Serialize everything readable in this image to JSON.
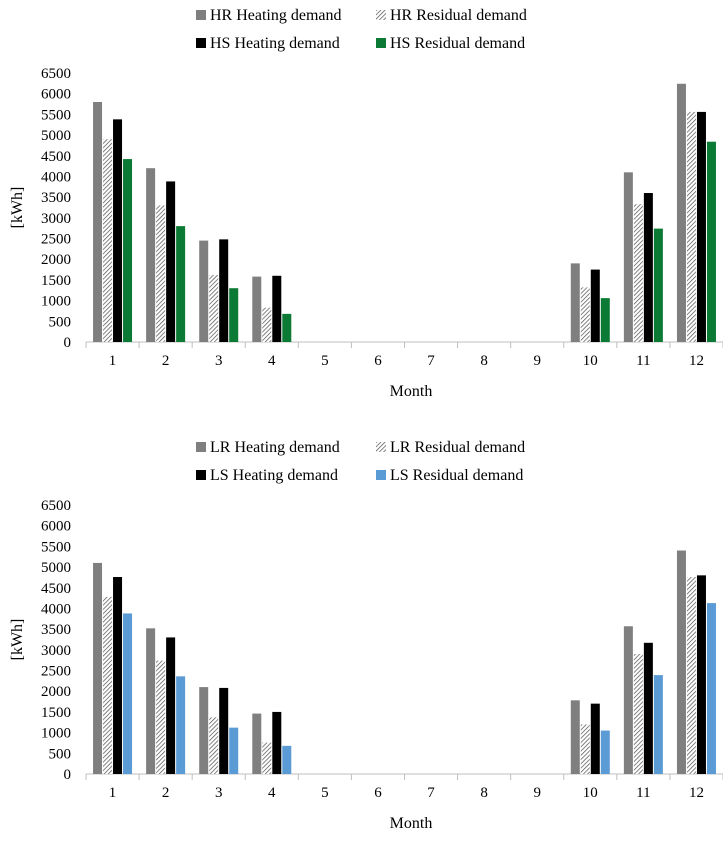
{
  "chart_data": [
    {
      "type": "bar",
      "title": "",
      "xlabel": "Month",
      "ylabel": "[kWh]",
      "ylim": [
        0,
        6500
      ],
      "yticks": [
        "0",
        "500",
        "1000",
        "1500",
        "2000",
        "2500",
        "3000",
        "3500",
        "4000",
        "4500",
        "5000",
        "5500",
        "6000",
        "6500"
      ],
      "categories": [
        "1",
        "2",
        "3",
        "4",
        "5",
        "6",
        "7",
        "8",
        "9",
        "10",
        "11",
        "12"
      ],
      "legend_position": "top",
      "grid": false,
      "series": [
        {
          "name": "HR Heating demand",
          "color": "#7f7f7f",
          "pattern": "solid",
          "values": [
            5800,
            4200,
            2450,
            1580,
            0,
            0,
            0,
            0,
            0,
            1900,
            4100,
            6240
          ]
        },
        {
          "name": "HR Residual demand",
          "color": "#595959",
          "pattern": "hatch",
          "values": [
            4900,
            3300,
            1620,
            830,
            0,
            0,
            0,
            0,
            0,
            1320,
            3330,
            5560
          ]
        },
        {
          "name": "HS Heating demand",
          "color": "#000000",
          "pattern": "solid",
          "values": [
            5380,
            3880,
            2480,
            1600,
            0,
            0,
            0,
            0,
            0,
            1750,
            3600,
            5560
          ]
        },
        {
          "name": "HS Residual demand",
          "color": "#0b7a34",
          "pattern": "solid",
          "values": [
            4420,
            2800,
            1300,
            680,
            0,
            0,
            0,
            0,
            0,
            1060,
            2740,
            4840
          ]
        }
      ]
    },
    {
      "type": "bar",
      "title": "",
      "xlabel": "Month",
      "ylabel": "[kWh]",
      "ylim": [
        0,
        6500
      ],
      "yticks": [
        "0",
        "500",
        "1000",
        "1500",
        "2000",
        "2500",
        "3000",
        "3500",
        "4000",
        "4500",
        "5000",
        "5500",
        "6000",
        "6500"
      ],
      "categories": [
        "1",
        "2",
        "3",
        "4",
        "5",
        "6",
        "7",
        "8",
        "9",
        "10",
        "11",
        "12"
      ],
      "legend_position": "top",
      "grid": false,
      "series": [
        {
          "name": "LR Heating demand",
          "color": "#7f7f7f",
          "pattern": "solid",
          "values": [
            5100,
            3520,
            2100,
            1460,
            0,
            0,
            0,
            0,
            0,
            1780,
            3570,
            5400
          ]
        },
        {
          "name": "LR Residual demand",
          "color": "#595959",
          "pattern": "hatch",
          "values": [
            4280,
            2740,
            1370,
            760,
            0,
            0,
            0,
            0,
            0,
            1200,
            2900,
            4760
          ]
        },
        {
          "name": "LS Heating demand",
          "color": "#000000",
          "pattern": "solid",
          "values": [
            4760,
            3300,
            2080,
            1500,
            0,
            0,
            0,
            0,
            0,
            1700,
            3170,
            4800
          ]
        },
        {
          "name": "LS Residual demand",
          "color": "#5b9bd5",
          "pattern": "solid",
          "values": [
            3880,
            2360,
            1120,
            680,
            0,
            0,
            0,
            0,
            0,
            1050,
            2390,
            4130
          ]
        }
      ]
    }
  ]
}
